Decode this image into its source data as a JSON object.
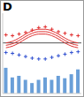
{
  "chart_data": {
    "type": "climate",
    "title": "D",
    "categories": [
      null,
      null,
      null,
      null,
      null,
      null,
      null,
      null,
      null,
      null,
      null,
      null
    ],
    "ylim": [
      0,
      100
    ],
    "y2lim": [
      0,
      100
    ],
    "tick_labels": false,
    "reference_line": {
      "value": 63,
      "color": "#555555"
    },
    "series": [
      {
        "type": "bar",
        "axis": "y2",
        "color": "#6a9fd8",
        "values": [
          32,
          20,
          22,
          17,
          13,
          17,
          20,
          17,
          22,
          19,
          24,
          30
        ]
      },
      {
        "type": "line",
        "color": "#e03030",
        "values": [
          63,
          65,
          69,
          74,
          78,
          80,
          80,
          78,
          74,
          69,
          65,
          63
        ]
      },
      {
        "type": "line",
        "color": "#e03030",
        "values": [
          60,
          62,
          66,
          71,
          75,
          77,
          77,
          75,
          71,
          66,
          62,
          60
        ]
      },
      {
        "type": "line",
        "color": "#e03030",
        "values": [
          57,
          59,
          63,
          68,
          72,
          74,
          74,
          72,
          68,
          63,
          59,
          57
        ]
      },
      {
        "type": "scatter",
        "marker": "plus",
        "color": "#e03030",
        "values": [
          73,
          72,
          74,
          76,
          79,
          82,
          83,
          80,
          77,
          75,
          73,
          72
        ]
      },
      {
        "type": "scatter",
        "marker": "plus",
        "color": "#3050d0",
        "values": [
          51,
          50,
          48,
          46,
          44,
          43,
          43,
          45,
          47,
          49,
          51,
          52
        ]
      }
    ]
  }
}
